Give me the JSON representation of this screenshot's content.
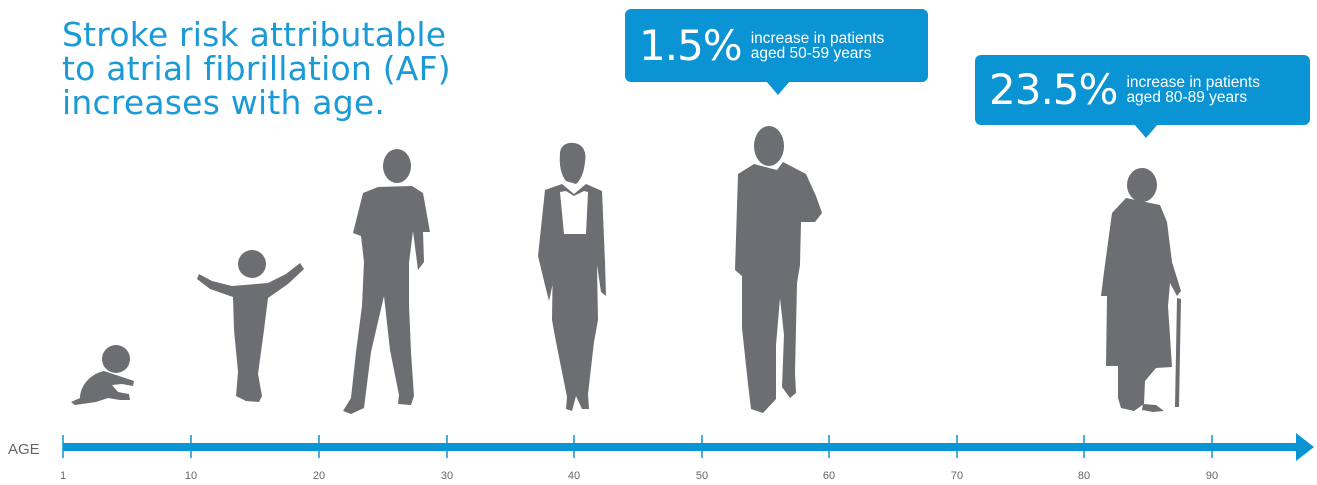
{
  "headline": {
    "line1": "Stroke risk attributable",
    "line2": "to atrial fibrillation (AF)",
    "line3": "increases with age."
  },
  "callouts": [
    {
      "percent": "1.5%",
      "line1": "increase in patients",
      "line2": "aged 50-59 years"
    },
    {
      "percent": "23.5%",
      "line1": "increase in patients",
      "line2": "aged 80-89 years"
    }
  ],
  "axis": {
    "label": "AGE",
    "ticks": [
      "1",
      "10",
      "20",
      "30",
      "40",
      "50",
      "60",
      "70",
      "80",
      "90"
    ]
  },
  "figures": [
    {
      "icon": "crawling-baby-icon"
    },
    {
      "icon": "toddler-icon"
    },
    {
      "icon": "teenager-icon"
    },
    {
      "icon": "woman-icon"
    },
    {
      "icon": "man-icon"
    },
    {
      "icon": "elderly-woman-with-cane-icon"
    }
  ],
  "colors": {
    "accent": "#0a94d4",
    "headline": "#1a9ad6",
    "silhouette": "#6d6e71",
    "axis_text": "#666666"
  }
}
